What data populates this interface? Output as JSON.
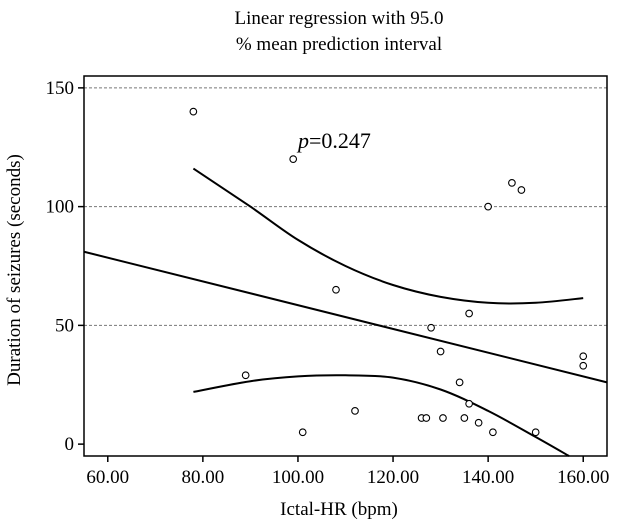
{
  "chart_data": {
    "type": "scatter",
    "title_line1": "Linear regression with 95.0",
    "title_line2": "% mean prediction interval",
    "xlabel": "Ictal-HR (bpm)",
    "ylabel": "Duration of seizures (seconds)",
    "xlim": [
      55,
      165
    ],
    "ylim": [
      -5,
      155
    ],
    "x_ticks": [
      {
        "value": 60,
        "label": "60.00"
      },
      {
        "value": 80,
        "label": "80.00"
      },
      {
        "value": 100,
        "label": "100.00"
      },
      {
        "value": 120,
        "label": "120.00"
      },
      {
        "value": 140,
        "label": "140.00"
      },
      {
        "value": 160,
        "label": "160.00"
      }
    ],
    "y_ticks": [
      {
        "value": 0,
        "label": "0"
      },
      {
        "value": 50,
        "label": "50"
      },
      {
        "value": 100,
        "label": "100"
      },
      {
        "value": 150,
        "label": "150"
      }
    ],
    "grid": {
      "horizontal": true,
      "style": "dashed"
    },
    "annotation": {
      "italic": "p",
      "text": "=0.247",
      "x": 100,
      "y": 128
    },
    "points": [
      {
        "x": 78,
        "y": 140
      },
      {
        "x": 89,
        "y": 29
      },
      {
        "x": 99,
        "y": 120
      },
      {
        "x": 101,
        "y": 5
      },
      {
        "x": 108,
        "y": 65
      },
      {
        "x": 112,
        "y": 14
      },
      {
        "x": 126,
        "y": 11
      },
      {
        "x": 127,
        "y": 11
      },
      {
        "x": 128,
        "y": 49
      },
      {
        "x": 130,
        "y": 39
      },
      {
        "x": 130.5,
        "y": 11
      },
      {
        "x": 134,
        "y": 26
      },
      {
        "x": 135,
        "y": 11
      },
      {
        "x": 136,
        "y": 55
      },
      {
        "x": 136,
        "y": 17
      },
      {
        "x": 138,
        "y": 9
      },
      {
        "x": 140,
        "y": 100
      },
      {
        "x": 141,
        "y": 5
      },
      {
        "x": 145,
        "y": 110
      },
      {
        "x": 147,
        "y": 107
      },
      {
        "x": 150,
        "y": 5
      },
      {
        "x": 160,
        "y": 37
      },
      {
        "x": 160,
        "y": 33
      }
    ],
    "regression_line": [
      [
        55,
        81
      ],
      [
        165,
        26
      ]
    ],
    "upper_ci": [
      [
        78,
        116
      ],
      [
        90,
        100
      ],
      [
        100,
        86
      ],
      [
        110,
        75
      ],
      [
        120,
        67
      ],
      [
        130,
        62
      ],
      [
        140,
        59.5
      ],
      [
        150,
        59.5
      ],
      [
        160,
        61.5
      ]
    ],
    "lower_ci": [
      [
        78,
        22
      ],
      [
        90,
        26.5
      ],
      [
        100,
        28.5
      ],
      [
        110,
        29
      ],
      [
        120,
        28
      ],
      [
        130,
        23
      ],
      [
        140,
        14
      ],
      [
        150,
        3
      ],
      [
        157,
        -5
      ]
    ]
  }
}
